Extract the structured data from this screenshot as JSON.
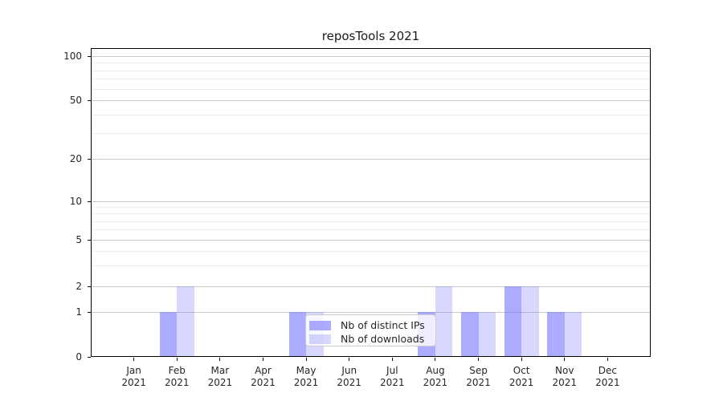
{
  "chart_data": {
    "type": "bar",
    "title": "reposTools 2021",
    "x_months": [
      "Jan",
      "Feb",
      "Mar",
      "Apr",
      "May",
      "Jun",
      "Jul",
      "Aug",
      "Sep",
      "Oct",
      "Nov",
      "Dec"
    ],
    "x_year": "2021",
    "series": [
      {
        "name": "Nb of distinct IPs",
        "key": "distinct-ips",
        "color": "rgba(127,127,255,0.65)",
        "values": [
          0,
          1,
          0,
          0,
          1,
          0,
          0,
          1,
          1,
          2,
          1,
          0
        ]
      },
      {
        "name": "Nb of downloads",
        "key": "downloads",
        "color": "rgba(127,127,255,0.30)",
        "values": [
          0,
          2,
          0,
          0,
          1,
          0,
          0,
          2,
          1,
          2,
          1,
          0
        ]
      }
    ],
    "yaxis": {
      "scale": "symlog",
      "ticks": [
        0,
        1,
        2,
        5,
        10,
        20,
        50,
        100
      ],
      "minor_gridlines": [
        3,
        4,
        6,
        7,
        8,
        9,
        30,
        40,
        60,
        70,
        80,
        90
      ],
      "ylim": [
        0,
        113
      ]
    },
    "legend": {
      "entries": [
        "Nb of distinct IPs",
        "Nb of downloads"
      ],
      "position": "lower center"
    },
    "grid": "horizontal major and minor"
  },
  "colors": {
    "bar_fill_base": "#7f7fff",
    "bar_distinct_ips_rendered": "#aaaaf0",
    "bar_downloads_rendered": "#dadaf8",
    "major_gridline": "#c9c9c9",
    "minor_gridline": "#ededed",
    "axis": "#000000",
    "text": "#262626",
    "legend_border": "#cccccc",
    "background": "#ffffff"
  }
}
